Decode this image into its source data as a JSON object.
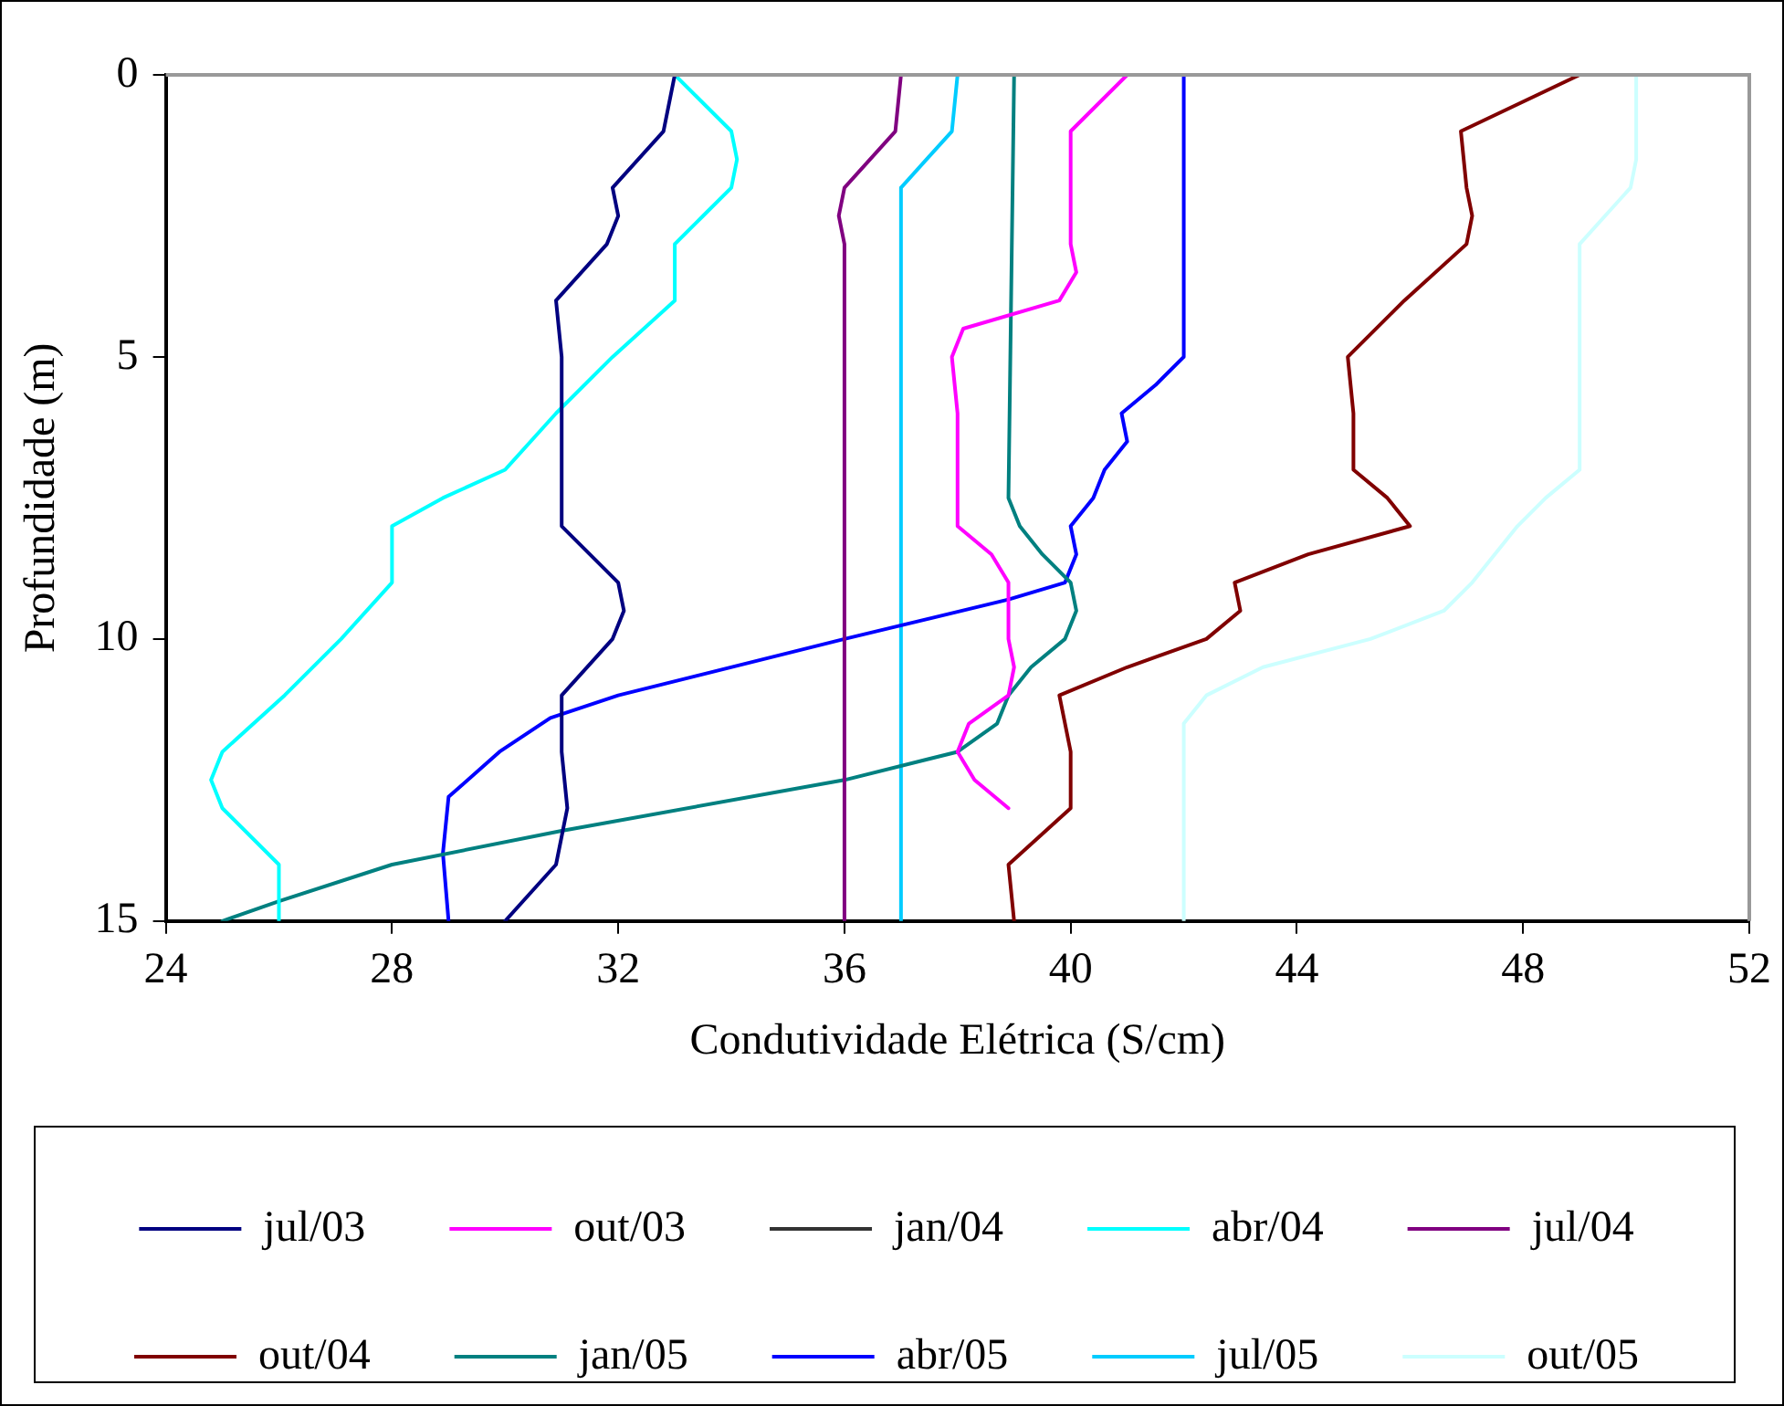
{
  "chart_data": {
    "type": "line",
    "xlabel": "Condutividade Elétrica (S/cm)",
    "ylabel": "Profundidade (m)",
    "xlim": [
      24,
      52
    ],
    "xticks": [
      24,
      28,
      32,
      36,
      40,
      44,
      48,
      52
    ],
    "ylim": [
      15,
      0
    ],
    "yticks": [
      0,
      5,
      10,
      15
    ],
    "grid": false,
    "legend": "bottom",
    "marker": "none",
    "line_style": "solid",
    "series": [
      {
        "name": "jul/03",
        "color": "#000080",
        "x": [
          33,
          32.8,
          31.9,
          32,
          31.8,
          30.9,
          31,
          31,
          32,
          32.1,
          31.9,
          31,
          31,
          31.1,
          30.9,
          30
        ],
        "values": [
          0,
          1,
          2,
          2.5,
          3,
          4,
          5,
          8,
          9,
          9.5,
          10,
          11,
          12,
          13,
          14,
          15
        ]
      },
      {
        "name": "out/03",
        "color": "#ff00ff",
        "x": [
          41,
          40,
          40,
          40.1,
          39.8,
          38.1,
          37.9,
          38,
          38,
          38.6,
          38.9,
          38.9,
          39,
          38.9,
          38.2,
          38,
          38.3,
          38.9
        ],
        "values": [
          0,
          1,
          3,
          3.5,
          4,
          4.5,
          5,
          6,
          8,
          8.5,
          9,
          10,
          10.5,
          11,
          11.5,
          12,
          12.5,
          13
        ]
      },
      {
        "name": "jan/04",
        "color": "#333333"
      },
      {
        "name": "abr/04",
        "color": "#00ffff",
        "x": [
          33,
          34,
          34.1,
          34,
          33.5,
          33,
          33,
          31.9,
          30.9,
          30,
          28.9,
          28,
          28,
          27.1,
          26.1,
          25,
          24.8,
          25,
          26,
          26
        ],
        "values": [
          0,
          1,
          1.5,
          2,
          2.5,
          3,
          4,
          5,
          6,
          7,
          7.5,
          8,
          9,
          10,
          11,
          12,
          12.5,
          13,
          14,
          15
        ]
      },
      {
        "name": "jul/04",
        "color": "#800080",
        "x": [
          37,
          36.9,
          36,
          35.9,
          36,
          36
        ],
        "values": [
          0,
          1,
          2,
          2.5,
          3,
          15
        ]
      },
      {
        "name": "out/04",
        "color": "#800000",
        "x": [
          49,
          46.9,
          47,
          47.1,
          47,
          45.9,
          44.9,
          45,
          45,
          45.6,
          46,
          44.2,
          42.9,
          43,
          42.4,
          41,
          39.8,
          40,
          40,
          38.9,
          39
        ],
        "values": [
          0,
          1,
          2,
          2.5,
          3,
          4,
          5,
          6,
          7,
          7.5,
          8,
          8.5,
          9,
          9.5,
          10,
          10.5,
          11,
          12,
          13,
          14,
          15
        ]
      },
      {
        "name": "jan/05",
        "color": "#008080",
        "x": [
          39,
          38.9,
          39.1,
          39.5,
          40,
          40.1,
          39.9,
          39.3,
          38.9,
          38.7,
          38,
          36,
          31,
          28,
          26,
          25
        ],
        "values": [
          0,
          7.5,
          8,
          8.5,
          9,
          9.5,
          10,
          10.5,
          11,
          11.5,
          12,
          12.5,
          13.4,
          14,
          14.65,
          15
        ]
      },
      {
        "name": "abr/05",
        "color": "#0000ff",
        "x": [
          42,
          42,
          41.5,
          40.9,
          41,
          40.6,
          40.4,
          40,
          40.1,
          39.9,
          38.9,
          36,
          32,
          30.8,
          29.9,
          29,
          28.9,
          29
        ],
        "values": [
          0,
          5,
          5.5,
          6,
          6.5,
          7,
          7.5,
          8,
          8.5,
          9,
          9.3,
          10,
          11,
          11.4,
          12,
          12.8,
          13.8,
          15
        ]
      },
      {
        "name": "jul/05",
        "color": "#00ccff",
        "x": [
          38,
          37.9,
          37,
          37
        ],
        "values": [
          0,
          1,
          2,
          15
        ]
      },
      {
        "name": "out/05",
        "color": "#ccffff",
        "x": [
          50,
          50,
          49.9,
          49,
          49,
          48.4,
          47.9,
          47.1,
          46.6,
          45.3,
          43.4,
          42.4,
          42,
          42
        ],
        "values": [
          0,
          1.5,
          2,
          3,
          7,
          7.5,
          8,
          9,
          9.5,
          10,
          10.5,
          11,
          11.5,
          15
        ]
      }
    ]
  }
}
